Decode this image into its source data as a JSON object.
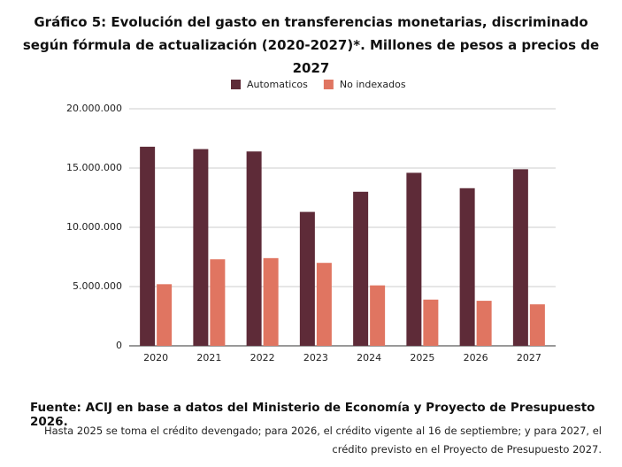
{
  "chart_data": {
    "type": "bar",
    "title": "Gráfico 5: Evolución del gasto en transferencias monetarias, discriminado según fórmula de actualización (2020-2027)*. Millones de pesos a precios de 2027",
    "categories": [
      "2020",
      "2021",
      "2022",
      "2023",
      "2024",
      "2025",
      "2026",
      "2027"
    ],
    "series": [
      {
        "name": "Automaticos",
        "color": "#5e2b38",
        "values": [
          16800000,
          16600000,
          16400000,
          11300000,
          13000000,
          14600000,
          13300000,
          14900000
        ]
      },
      {
        "name": "No indexados",
        "color": "#e07561",
        "values": [
          5200000,
          7300000,
          7400000,
          7000000,
          5100000,
          3900000,
          3800000,
          3500000
        ]
      }
    ],
    "ylim": [
      0,
      20000000
    ],
    "yticks": [
      0,
      {
        "value": 5000000,
        "label": "5.000.000"
      },
      {
        "value": 10000000,
        "label": "10.000.000"
      },
      {
        "value": 15000000,
        "label": "15.000.000"
      },
      {
        "value": 20000000,
        "label": "20.000.000"
      }
    ],
    "grid": true,
    "legend": "top",
    "source": "Fuente: ACIJ en base a datos del Ministerio de Economía y Proyecto de Presupuesto 2026.",
    "note": "Hasta 2025 se toma el crédito devengado; para 2026, el crédito vigente al 16 de septiembre; y para 2027, el crédito previsto en el Proyecto de Presupuesto 2027."
  }
}
